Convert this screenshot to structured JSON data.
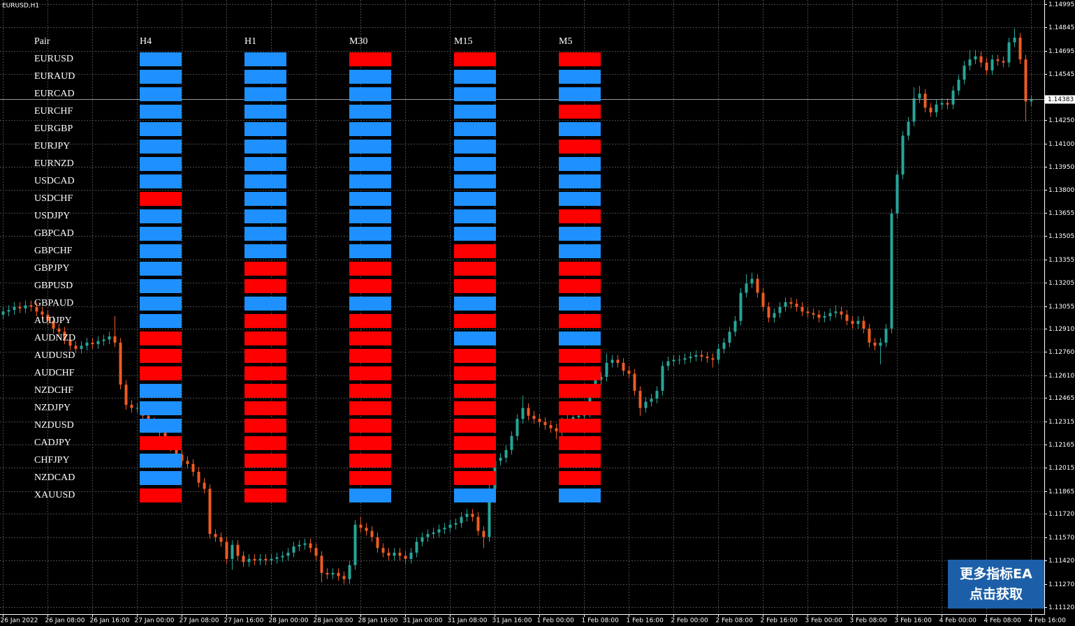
{
  "symbol": "EURUSD,H1",
  "chart_data": {
    "type": "candlestick",
    "colors": {
      "up": "#26a69a",
      "down": "#ef5b23",
      "grid": "#4a4a4a",
      "current_line": "#9a9a9a"
    },
    "grid": true,
    "ylim": [
      1.11075,
      1.15022
    ],
    "yticks": [
      1.14995,
      1.14845,
      1.14695,
      1.14545,
      {
        "value": 1.1425,
        "label": "1.14250"
      },
      {
        "value": 1.141,
        "label": "1.14100"
      },
      {
        "value": 1.1395,
        "label": "1.13950"
      },
      {
        "value": 1.138,
        "label": "1.13800"
      },
      1.13655,
      1.13505,
      1.13355,
      1.13205,
      1.13055,
      {
        "value": 1.1291,
        "label": "1.12910"
      },
      {
        "value": 1.1276,
        "label": "1.12760"
      },
      {
        "value": 1.1261,
        "label": "1.12610"
      },
      1.12465,
      1.12315,
      1.12165,
      1.12015,
      1.11865,
      {
        "value": 1.1172,
        "label": "1.11720"
      },
      {
        "value": 1.1157,
        "label": "1.11570"
      },
      {
        "value": 1.1142,
        "label": "1.11420"
      },
      {
        "value": 1.1127,
        "label": "1.11270"
      },
      {
        "value": 1.1112,
        "label": "1.11120"
      }
    ],
    "current_price": 1.14383,
    "xticks": [
      {
        "value": 0,
        "label": "26 Jan 2022"
      },
      {
        "value": 8,
        "label": "26 Jan 08:00"
      },
      {
        "value": 16,
        "label": "26 Jan 16:00"
      },
      {
        "value": 24,
        "label": "27 Jan 00:00"
      },
      {
        "value": 32,
        "label": "27 Jan 08:00"
      },
      {
        "value": 40,
        "label": "27 Jan 16:00"
      },
      {
        "value": 48,
        "label": "28 Jan 00:00"
      },
      {
        "value": 56,
        "label": "28 Jan 08:00"
      },
      {
        "value": 64,
        "label": "28 Jan 16:00"
      },
      {
        "value": 72,
        "label": "31 Jan 00:00"
      },
      {
        "value": 80,
        "label": "31 Jan 08:00"
      },
      {
        "value": 88,
        "label": "31 Jan 16:00"
      },
      {
        "value": 96,
        "label": "1 Feb 00:00"
      },
      {
        "value": 104,
        "label": "1 Feb 08:00"
      },
      {
        "value": 112,
        "label": "1 Feb 16:00"
      },
      {
        "value": 120,
        "label": "2 Feb 00:00"
      },
      {
        "value": 128,
        "label": "2 Feb 08:00"
      },
      {
        "value": 136,
        "label": "2 Feb 16:00"
      },
      {
        "value": 144,
        "label": "3 Feb 00:00"
      },
      {
        "value": 152,
        "label": "3 Feb 08:00"
      },
      {
        "value": 160,
        "label": "3 Feb 16:00"
      },
      {
        "value": 168,
        "label": "4 Feb 00:00"
      },
      {
        "value": 176,
        "label": "4 Feb 08:00"
      },
      {
        "value": 184,
        "label": "4 Feb 16:00"
      }
    ],
    "open": [
      1.13,
      1.1302,
      1.1303,
      1.1305,
      1.1304,
      1.1306,
      1.1305,
      1.1302,
      1.13,
      1.1296,
      1.1291,
      1.1289,
      1.1284,
      1.128,
      1.1278,
      1.128,
      1.1282,
      1.1281,
      1.1283,
      1.1284,
      1.1286,
      1.1282,
      1.1255,
      1.1242,
      1.124,
      1.124,
      1.1235,
      1.1231,
      1.1228,
      1.1224,
      1.1219,
      1.1215,
      1.121,
      1.1206,
      1.1204,
      1.1199,
      1.1192,
      1.1188,
      1.1159,
      1.1157,
      1.1154,
      1.1143,
      1.1152,
      1.1145,
      1.1141,
      1.1143,
      1.1142,
      1.1143,
      1.1142,
      1.1143,
      1.1144,
      1.1145,
      1.1147,
      1.1151,
      1.1152,
      1.1153,
      1.115,
      1.1145,
      1.1134,
      1.1133,
      1.1134,
      1.1132,
      1.113,
      1.1139,
      1.1165,
      1.1163,
      1.1161,
      1.1157,
      1.115,
      1.1147,
      1.1145,
      1.1147,
      1.1145,
      1.1143,
      1.1147,
      1.1154,
      1.1157,
      1.1159,
      1.116,
      1.1162,
      1.1163,
      1.1165,
      1.1166,
      1.117,
      1.1172,
      1.117,
      1.1161,
      1.1157,
      1.1188,
      1.1206,
      1.1208,
      1.1213,
      1.1222,
      1.1233,
      1.124,
      1.1235,
      1.1233,
      1.1231,
      1.1229,
      1.1227,
      1.1225,
      1.1231,
      1.1233,
      1.1234,
      1.1235,
      1.1237,
      1.1251,
      1.1258,
      1.126,
      1.1269,
      1.1271,
      1.1269,
      1.1264,
      1.1262,
      1.1251,
      1.124,
      1.1244,
      1.1246,
      1.1251,
      1.1267,
      1.127,
      1.1271,
      1.1271,
      1.1272,
      1.1273,
      1.1274,
      1.1273,
      1.1272,
      1.1271,
      1.1278,
      1.1282,
      1.1289,
      1.1296,
      1.1314,
      1.132,
      1.1323,
      1.1314,
      1.1305,
      1.1298,
      1.1301,
      1.1305,
      1.1308,
      1.1307,
      1.1305,
      1.1302,
      1.1301,
      1.13,
      1.1298,
      1.1299,
      1.1301,
      1.1302,
      1.13,
      1.1296,
      1.1294,
      1.1296,
      1.1291,
      1.1282,
      1.128,
      1.1282,
      1.1291,
      1.1365,
      1.139,
      1.1415,
      1.1424,
      1.1439,
      1.1442,
      1.1433,
      1.143,
      1.1435,
      1.1436,
      1.1435,
      1.1444,
      1.1451,
      1.146,
      1.1464,
      1.1466,
      1.1462,
      1.1457,
      1.1464,
      1.1463,
      1.1462,
      1.1475,
      1.1478,
      1.1464,
      1.1437
    ],
    "high": [
      1.1305,
      1.1306,
      1.1308,
      1.1308,
      1.1309,
      1.1309,
      1.1308,
      1.1305,
      1.1303,
      1.1299,
      1.1294,
      1.1292,
      1.1287,
      1.1283,
      1.1283,
      1.1285,
      1.1285,
      1.1286,
      1.1287,
      1.1289,
      1.1299,
      1.1285,
      1.1258,
      1.1245,
      1.1243,
      1.1243,
      1.1238,
      1.1234,
      1.1231,
      1.1227,
      1.1222,
      1.1218,
      1.1213,
      1.1209,
      1.1207,
      1.1202,
      1.1195,
      1.1191,
      1.1162,
      1.116,
      1.1157,
      1.1155,
      1.1155,
      1.1148,
      1.1146,
      1.1146,
      1.1146,
      1.1146,
      1.1146,
      1.1147,
      1.1148,
      1.115,
      1.1154,
      1.1155,
      1.1156,
      1.1156,
      1.1153,
      1.1148,
      1.1137,
      1.1137,
      1.1137,
      1.1135,
      1.1142,
      1.1168,
      1.117,
      1.1166,
      1.1164,
      1.116,
      1.1153,
      1.115,
      1.115,
      1.115,
      1.1148,
      1.115,
      1.1157,
      1.116,
      1.1162,
      1.1163,
      1.1165,
      1.1166,
      1.1168,
      1.1169,
      1.1173,
      1.1175,
      1.1175,
      1.1173,
      1.1164,
      1.1191,
      1.1209,
      1.1211,
      1.1216,
      1.1225,
      1.1236,
      1.1248,
      1.1243,
      1.1238,
      1.1236,
      1.1234,
      1.1232,
      1.123,
      1.1234,
      1.1236,
      1.1237,
      1.1238,
      1.124,
      1.1254,
      1.1261,
      1.1263,
      1.1275,
      1.1274,
      1.1274,
      1.1272,
      1.1267,
      1.1265,
      1.1254,
      1.1247,
      1.1249,
      1.1254,
      1.127,
      1.1273,
      1.1274,
      1.1274,
      1.1275,
      1.1276,
      1.1277,
      1.1277,
      1.1276,
      1.1275,
      1.1281,
      1.1285,
      1.1292,
      1.1299,
      1.1317,
      1.1326,
      1.1327,
      1.1326,
      1.1317,
      1.1308,
      1.1304,
      1.1308,
      1.1311,
      1.1311,
      1.131,
      1.1308,
      1.1305,
      1.1304,
      1.1303,
      1.1302,
      1.1304,
      1.1306,
      1.1305,
      1.1303,
      1.1299,
      1.1299,
      1.1299,
      1.1294,
      1.1285,
      1.1285,
      1.1294,
      1.1368,
      1.1393,
      1.1418,
      1.1427,
      1.1446,
      1.1447,
      1.1445,
      1.1436,
      1.1438,
      1.1439,
      1.1439,
      1.1447,
      1.1454,
      1.1463,
      1.147,
      1.147,
      1.1469,
      1.1465,
      1.1467,
      1.1467,
      1.1466,
      1.1478,
      1.1484,
      1.1481,
      1.1467,
      1.1441
    ],
    "low": [
      1.1297,
      1.1299,
      1.13,
      1.1301,
      1.1301,
      1.1302,
      1.1299,
      1.1297,
      1.1293,
      1.1288,
      1.1286,
      1.1281,
      1.1277,
      1.1275,
      1.1275,
      1.1277,
      1.1278,
      1.1278,
      1.128,
      1.1281,
      1.1279,
      1.1252,
      1.1239,
      1.1237,
      1.1237,
      1.1232,
      1.1228,
      1.1225,
      1.1221,
      1.1216,
      1.1212,
      1.1207,
      1.1203,
      1.1201,
      1.1196,
      1.1189,
      1.1185,
      1.1156,
      1.1154,
      1.1151,
      1.114,
      1.1136,
      1.1142,
      1.1138,
      1.1138,
      1.1139,
      1.1139,
      1.1139,
      1.1139,
      1.114,
      1.1141,
      1.1142,
      1.1144,
      1.1148,
      1.1149,
      1.1147,
      1.1142,
      1.1128,
      1.113,
      1.113,
      1.1129,
      1.1127,
      1.1127,
      1.1136,
      1.116,
      1.1158,
      1.1154,
      1.1147,
      1.1144,
      1.1142,
      1.1142,
      1.1142,
      1.114,
      1.114,
      1.1144,
      1.1151,
      1.1154,
      1.1156,
      1.1157,
      1.1159,
      1.116,
      1.1162,
      1.1163,
      1.1167,
      1.1167,
      1.1158,
      1.115,
      1.1154,
      1.1185,
      1.1203,
      1.1205,
      1.121,
      1.1219,
      1.123,
      1.1232,
      1.123,
      1.1228,
      1.1226,
      1.1224,
      1.122,
      1.1222,
      1.1228,
      1.123,
      1.1231,
      1.1232,
      1.1234,
      1.1248,
      1.1255,
      1.1257,
      1.1266,
      1.1266,
      1.1261,
      1.1259,
      1.1248,
      1.1235,
      1.1237,
      1.1241,
      1.1243,
      1.1248,
      1.1264,
      1.1267,
      1.1268,
      1.1268,
      1.1269,
      1.127,
      1.127,
      1.1269,
      1.1266,
      1.1268,
      1.1275,
      1.1279,
      1.1286,
      1.1293,
      1.1311,
      1.1317,
      1.1311,
      1.1302,
      1.1295,
      1.1295,
      1.1298,
      1.1302,
      1.1304,
      1.1302,
      1.1299,
      1.1298,
      1.1297,
      1.1295,
      1.1295,
      1.1296,
      1.1298,
      1.1297,
      1.1293,
      1.1291,
      1.1291,
      1.1288,
      1.1279,
      1.1277,
      1.1268,
      1.1279,
      1.1288,
      1.1362,
      1.1387,
      1.1412,
      1.1421,
      1.1436,
      1.143,
      1.1427,
      1.1427,
      1.1432,
      1.1432,
      1.1432,
      1.1441,
      1.1448,
      1.1457,
      1.1461,
      1.1459,
      1.1454,
      1.1454,
      1.146,
      1.1459,
      1.1459,
      1.1472,
      1.1461,
      1.1424,
      1.1434
    ],
    "close": [
      1.1302,
      1.1303,
      1.1305,
      1.1304,
      1.1306,
      1.1305,
      1.1302,
      1.13,
      1.1296,
      1.1291,
      1.1289,
      1.1284,
      1.128,
      1.1278,
      1.128,
      1.1282,
      1.1281,
      1.1283,
      1.1284,
      1.1286,
      1.1282,
      1.1255,
      1.1242,
      1.124,
      1.124,
      1.1235,
      1.1231,
      1.1228,
      1.1224,
      1.1219,
      1.1215,
      1.121,
      1.1206,
      1.1204,
      1.1199,
      1.1192,
      1.1188,
      1.1159,
      1.1157,
      1.1154,
      1.1143,
      1.1152,
      1.1145,
      1.1141,
      1.1143,
      1.1142,
      1.1143,
      1.1142,
      1.1143,
      1.1144,
      1.1145,
      1.1147,
      1.1151,
      1.1152,
      1.1153,
      1.115,
      1.1145,
      1.1134,
      1.1133,
      1.1134,
      1.1132,
      1.113,
      1.1139,
      1.1165,
      1.1163,
      1.1161,
      1.1157,
      1.115,
      1.1147,
      1.1145,
      1.1147,
      1.1145,
      1.1143,
      1.1147,
      1.1154,
      1.1157,
      1.1159,
      1.116,
      1.1162,
      1.1163,
      1.1165,
      1.1166,
      1.117,
      1.1172,
      1.117,
      1.1161,
      1.1157,
      1.1188,
      1.1206,
      1.1208,
      1.1213,
      1.1222,
      1.1233,
      1.124,
      1.1235,
      1.1233,
      1.1231,
      1.1229,
      1.1227,
      1.1225,
      1.1231,
      1.1233,
      1.1234,
      1.1235,
      1.1237,
      1.1251,
      1.1258,
      1.126,
      1.1269,
      1.1271,
      1.1269,
      1.1264,
      1.1262,
      1.1251,
      1.124,
      1.1244,
      1.1246,
      1.1251,
      1.1267,
      1.127,
      1.1271,
      1.1271,
      1.1272,
      1.1273,
      1.1274,
      1.1273,
      1.1272,
      1.1271,
      1.1278,
      1.1282,
      1.1289,
      1.1296,
      1.1314,
      1.132,
      1.1323,
      1.1314,
      1.1305,
      1.1298,
      1.1301,
      1.1305,
      1.1308,
      1.1307,
      1.1305,
      1.1302,
      1.1301,
      1.13,
      1.1298,
      1.1299,
      1.1301,
      1.1302,
      1.13,
      1.1296,
      1.1294,
      1.1296,
      1.1291,
      1.1282,
      1.128,
      1.1282,
      1.1291,
      1.1365,
      1.139,
      1.1415,
      1.1424,
      1.1439,
      1.1442,
      1.1433,
      1.143,
      1.1435,
      1.1436,
      1.1435,
      1.1444,
      1.1451,
      1.146,
      1.1464,
      1.1466,
      1.1462,
      1.1457,
      1.1464,
      1.1463,
      1.1462,
      1.1475,
      1.1478,
      1.1464,
      1.1437,
      1.1438
    ]
  },
  "dashboard": {
    "header": [
      "Pair",
      "H4",
      "H1",
      "M30",
      "M15",
      "M5"
    ],
    "pairs": [
      "EURUSD",
      "EURAUD",
      "EURCAD",
      "EURCHF",
      "EURGBP",
      "EURJPY",
      "EURNZD",
      "USDCAD",
      "USDCHF",
      "USDJPY",
      "GBPCAD",
      "GBPCHF",
      "GBPJPY",
      "GBPUSD",
      "GBPAUD",
      "AUDJPY",
      "AUDNZD",
      "AUDUSD",
      "AUDCHF",
      "NZDCHF",
      "NZDJPY",
      "NZDUSD",
      "CADJPY",
      "CHFJPY",
      "NZDCAD",
      "XAUUSD"
    ],
    "signals": [
      "BBRRR",
      "BBBBB",
      "BBBBB",
      "BBBBR",
      "BBBBB",
      "BBBBR",
      "BBBBB",
      "BBBBB",
      "RBBBB",
      "BBBBR",
      "BBBBB",
      "BBBRB",
      "BRRRR",
      "BRRRR",
      "BBBBB",
      "BRRRR",
      "RRRBB",
      "RRRRR",
      "RRRRR",
      "BRRRR",
      "BRRRR",
      "BRRRR",
      "RRRRR",
      "BRRRR",
      "BRRRR",
      "RRBBB"
    ],
    "colors": {
      "B": "#1e90ff",
      "R": "#ff0000"
    }
  },
  "banner": [
    "更多指标EA",
    "点击获取"
  ]
}
